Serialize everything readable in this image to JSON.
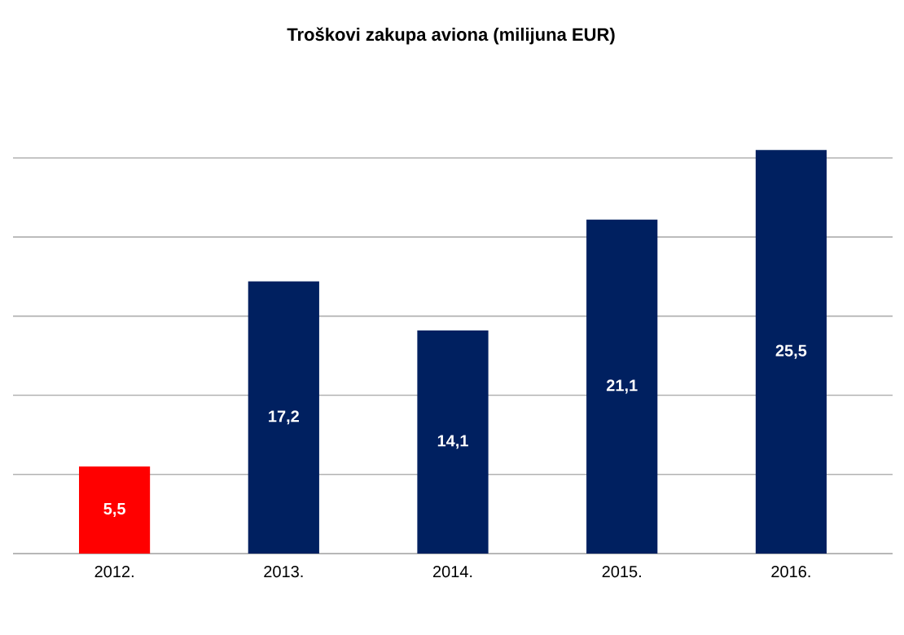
{
  "chart_data": {
    "type": "bar",
    "title": "Troškovi zakupa aviona (milijuna EUR)",
    "categories": [
      "2012.",
      "2013.",
      "2014.",
      "2015.",
      "2016."
    ],
    "values": [
      5.5,
      17.2,
      14.1,
      21.1,
      25.5
    ],
    "colors": [
      "#ff0000",
      "#002060",
      "#002060",
      "#002060",
      "#002060"
    ],
    "value_labels": [
      "5,5",
      "17,2",
      "14,1",
      "21,1",
      "25,5"
    ],
    "tick_labels": "x",
    "grid": "y"
  }
}
